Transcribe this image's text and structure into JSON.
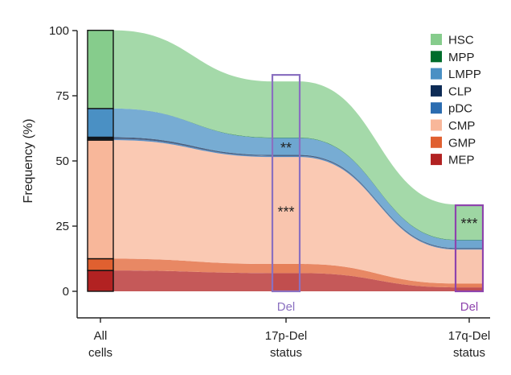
{
  "chart_data": {
    "type": "area",
    "ylabel": "Frequency (%)",
    "ylim": [
      0,
      100
    ],
    "yticks": [
      0,
      25,
      50,
      75,
      100
    ],
    "categories": [
      "All\ncells",
      "17p-Del\nstatus",
      "17q-Del\nstatus"
    ],
    "legend": {
      "placement": "top-right"
    },
    "series": [
      {
        "name": "HSC",
        "color": "#86cc8c",
        "values": [
          30.0,
          21.5,
          13.5
        ]
      },
      {
        "name": "MPP",
        "color": "#006d2c",
        "values": [
          0.0,
          0.2,
          0.2
        ]
      },
      {
        "name": "LMPP",
        "color": "#4a90c4",
        "values": [
          11.0,
          6.5,
          3.0
        ]
      },
      {
        "name": "CLP",
        "color": "#0d2b55",
        "values": [
          0.6,
          0.4,
          0.3
        ]
      },
      {
        "name": "pDC",
        "color": "#2b6cb0",
        "values": [
          0.5,
          0.4,
          0.3
        ]
      },
      {
        "name": "CMP",
        "color": "#f8b79a",
        "values": [
          45.5,
          41.0,
          13.0
        ]
      },
      {
        "name": "GMP",
        "color": "#e06030",
        "values": [
          4.5,
          3.5,
          1.5
        ]
      },
      {
        "name": "MEP",
        "color": "#b22222",
        "values": [
          8.0,
          7.0,
          1.5
        ]
      }
    ],
    "annotations": [
      {
        "category": "17p-Del\nstatus",
        "label": "Del",
        "color": "#8a70c0",
        "box": [
          0,
          83
        ]
      },
      {
        "category": "17q-Del\nstatus",
        "label": "Del",
        "color": "#8e44ad",
        "box": [
          0,
          33
        ]
      }
    ],
    "significance": [
      {
        "category": "17p-Del\nstatus",
        "series": "CMP",
        "label": "***"
      },
      {
        "category": "17p-Del\nstatus",
        "series": "LMPP",
        "label": "**"
      },
      {
        "category": "17q-Del\nstatus",
        "series": "HSC",
        "label": "***"
      }
    ]
  }
}
